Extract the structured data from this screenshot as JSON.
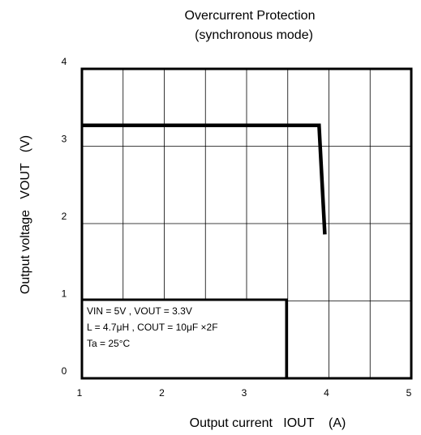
{
  "chart_data": {
    "type": "line",
    "title": "Overcurrent Protection",
    "subtitle": "(synchronous mode)",
    "x_label": "Output current   IOUT    (A)",
    "y_label": "Output voltage   VOUT   (V)",
    "x": [
      1,
      3.88,
      3.95
    ],
    "series": [
      {
        "name": "VOUT",
        "color": "#000000",
        "values": [
          3.27,
          3.27,
          1.86
        ]
      }
    ],
    "xlim": [
      1,
      5
    ],
    "xticks": [
      1,
      2,
      3,
      4,
      5
    ],
    "x_minor_grid": [
      1.5,
      2.5,
      3.5,
      4.5
    ],
    "ylim": [
      0,
      4
    ],
    "yticks": [
      0,
      1,
      2,
      3,
      4
    ],
    "grid": true,
    "annotations": [
      "VIN = 5V , VOUT = 3.3V",
      "L = 4.7μH , COUT = 10μF  ×2F",
      "Ta = 25°C"
    ]
  }
}
